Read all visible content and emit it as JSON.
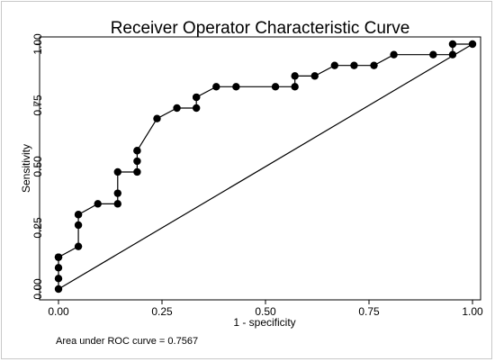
{
  "chart_data": {
    "type": "line",
    "title": "Receiver Operator Characteristic Curve",
    "xlabel": "1 - specificity",
    "ylabel": "Sensitivity",
    "xlim": [
      0,
      1
    ],
    "ylim": [
      0,
      1
    ],
    "x_ticks": [
      "0.00",
      "0.25",
      "0.50",
      "0.75",
      "1.00"
    ],
    "y_ticks": [
      "0.00",
      "0.25",
      "0.50",
      "0.75",
      "1.00"
    ],
    "grid": false,
    "legend": "none",
    "note": "Area under ROC curve = 0.7567",
    "series": [
      {
        "x": [
          0,
          0,
          0,
          0,
          0,
          0.048,
          0.048,
          0.048,
          0.048,
          0.095,
          0.143,
          0.143,
          0.143,
          0.19,
          0.19,
          0.19,
          0.19,
          0.238,
          0.286,
          0.333,
          0.333,
          0.333,
          0.381,
          0.429,
          0.524,
          0.571,
          0.571,
          0.619,
          0.667,
          0.714,
          0.762,
          0.81,
          0.905,
          0.952,
          0.952,
          1.0
        ],
        "y": [
          0,
          0.043,
          0.087,
          0.13,
          0.13,
          0.174,
          0.261,
          0.304,
          0.304,
          0.348,
          0.348,
          0.391,
          0.478,
          0.478,
          0.522,
          0.565,
          0.565,
          0.696,
          0.739,
          0.739,
          0.783,
          0.783,
          0.826,
          0.826,
          0.826,
          0.826,
          0.87,
          0.87,
          0.913,
          0.913,
          0.913,
          0.957,
          0.957,
          0.957,
          1.0,
          1.0
        ]
      },
      {
        "x": [
          0,
          1
        ],
        "y": [
          0,
          1
        ]
      }
    ],
    "colors": {
      "curve": "#000000",
      "reference": "#000000",
      "frame": "#000000"
    }
  }
}
